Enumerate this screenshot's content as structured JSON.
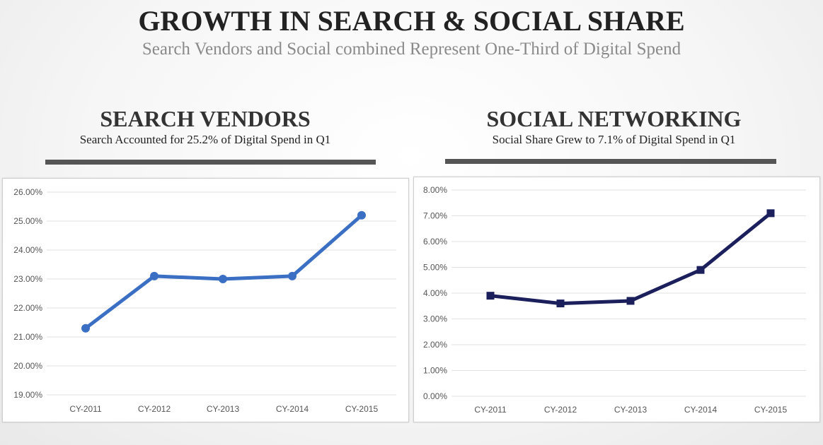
{
  "header": {
    "title": "GROWTH IN SEARCH & SOCIAL SHARE",
    "subtitle": "Search Vendors and Social combined Represent One-Third of Digital Spend"
  },
  "panels": [
    {
      "title": "SEARCH VENDORS",
      "subtitle": "Search Accounted for 25.2% of Digital Spend in Q1"
    },
    {
      "title": "SOCIAL NETWORKING",
      "subtitle": "Social Share Grew to 7.1% of Digital Spend in Q1"
    }
  ],
  "colors": {
    "search_line": "#3a6fc4",
    "social_line": "#1b1f5c",
    "rule": "#555555",
    "gridline": "#e2e2e2"
  },
  "chart_data": [
    {
      "type": "line",
      "title": "",
      "xlabel": "",
      "ylabel": "",
      "categories": [
        "CY-2011",
        "CY-2012",
        "CY-2013",
        "CY-2014",
        "CY-2015"
      ],
      "values": [
        21.3,
        23.1,
        23.0,
        23.1,
        25.2
      ],
      "ylim": [
        19,
        26
      ],
      "yticks": [
        19,
        20,
        21,
        22,
        23,
        24,
        25,
        26
      ],
      "ytick_labels": [
        "19.00%",
        "20.00%",
        "21.00%",
        "22.00%",
        "23.00%",
        "24.00%",
        "25.00%",
        "26.00%"
      ],
      "marker": "circle",
      "grid": true,
      "legend": "none"
    },
    {
      "type": "line",
      "title": "",
      "xlabel": "",
      "ylabel": "",
      "categories": [
        "CY-2011",
        "CY-2012",
        "CY-2013",
        "CY-2014",
        "CY-2015"
      ],
      "values": [
        3.9,
        3.6,
        3.7,
        4.9,
        7.1
      ],
      "ylim": [
        0,
        8
      ],
      "yticks": [
        0,
        1,
        2,
        3,
        4,
        5,
        6,
        7,
        8
      ],
      "ytick_labels": [
        "0.00%",
        "1.00%",
        "2.00%",
        "3.00%",
        "4.00%",
        "5.00%",
        "6.00%",
        "7.00%",
        "8.00%"
      ],
      "marker": "square",
      "grid": true,
      "legend": "none"
    }
  ]
}
